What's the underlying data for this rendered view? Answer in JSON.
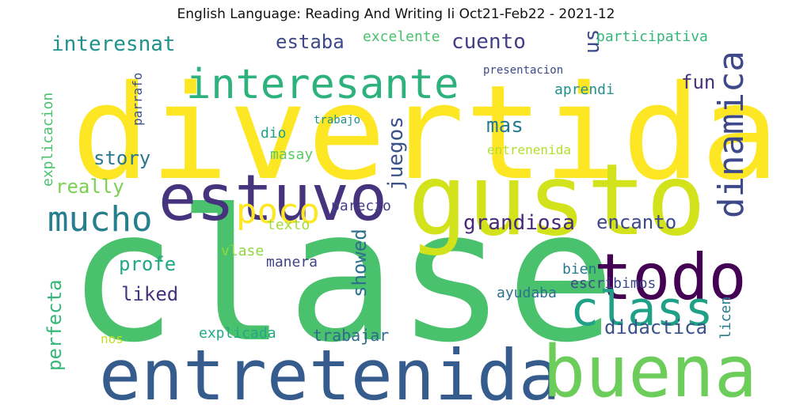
{
  "title": "English Language: Reading And Writing Ii Oct21-Feb22 - 2021-12",
  "palette": {
    "yellow": "#fde725",
    "lime": "#b5de2b",
    "green": "#4ac16d",
    "teal": "#1fa187",
    "blue": "#365c8d",
    "indigo": "#46337e",
    "purple": "#440154"
  },
  "words": [
    {
      "text": "divertida",
      "color": "#fde725"
    },
    {
      "text": "clase",
      "color": "#4ac16d"
    },
    {
      "text": "gusto",
      "color": "#d2e21b"
    },
    {
      "text": "estuvo",
      "color": "#46337e"
    },
    {
      "text": "entretenida",
      "color": "#365c8d"
    },
    {
      "text": "buena",
      "color": "#6ccd5a"
    },
    {
      "text": "todo",
      "color": "#440154"
    },
    {
      "text": "class",
      "color": "#1fa187"
    },
    {
      "text": "interesante",
      "color": "#2db27d"
    },
    {
      "text": "mucho",
      "color": "#277f8e"
    },
    {
      "text": "dinamica",
      "color": "#3e4989"
    },
    {
      "text": "poco",
      "color": "#fde725"
    },
    {
      "text": "grandiosa",
      "color": "#482878"
    },
    {
      "text": "encanto",
      "color": "#3e4989"
    },
    {
      "text": "interesnat",
      "color": "#21918c"
    },
    {
      "text": "estaba",
      "color": "#3e4989"
    },
    {
      "text": "excelente",
      "color": "#4ac16d"
    },
    {
      "text": "cuento",
      "color": "#433e85"
    },
    {
      "text": "us",
      "color": "#3e4989"
    },
    {
      "text": "participativa",
      "color": "#35b779"
    },
    {
      "text": "fun",
      "color": "#46337e"
    },
    {
      "text": "presentacion",
      "color": "#3e4989"
    },
    {
      "text": "aprendi",
      "color": "#21918c"
    },
    {
      "text": "mas",
      "color": "#287c8e"
    },
    {
      "text": "parrafo",
      "color": "#3b528b"
    },
    {
      "text": "explicacion",
      "color": "#4ac16d"
    },
    {
      "text": "trabajo",
      "color": "#21918c"
    },
    {
      "text": "dio",
      "color": "#1f9e89"
    },
    {
      "text": "juegos",
      "color": "#3b528b"
    },
    {
      "text": "entrenenida",
      "color": "#b5de2b"
    },
    {
      "text": "masay",
      "color": "#5ec962"
    },
    {
      "text": "story",
      "color": "#2a788e"
    },
    {
      "text": "really",
      "color": "#7ad151"
    },
    {
      "text": "parecio",
      "color": "#433e85"
    },
    {
      "text": "texto",
      "color": "#a5db36"
    },
    {
      "text": "vlase",
      "color": "#90d743"
    },
    {
      "text": "profe",
      "color": "#22a884"
    },
    {
      "text": "showed",
      "color": "#2c728e"
    },
    {
      "text": "manera",
      "color": "#414487"
    },
    {
      "text": "bien",
      "color": "#2a788e"
    },
    {
      "text": "liked",
      "color": "#46337e"
    },
    {
      "text": "perfecta",
      "color": "#35b779"
    },
    {
      "text": "escribimos",
      "color": "#3e4989"
    },
    {
      "text": "ayudaba",
      "color": "#2c728e"
    },
    {
      "text": "didactica",
      "color": "#3b528b"
    },
    {
      "text": "licen",
      "color": "#287c8e"
    },
    {
      "text": "explicada",
      "color": "#22a884"
    },
    {
      "text": "trabajar",
      "color": "#306a8e"
    },
    {
      "text": "nos",
      "color": "#c2df23"
    }
  ]
}
